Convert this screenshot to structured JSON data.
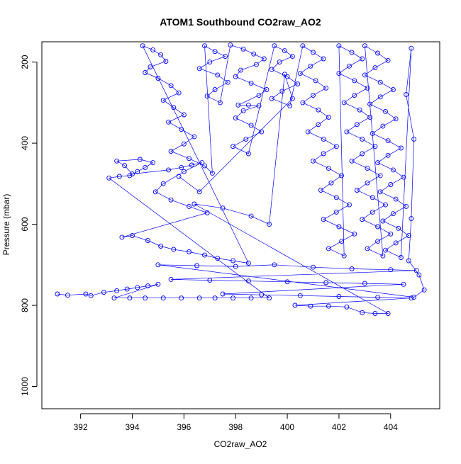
{
  "chart_data": {
    "type": "scatter",
    "title": "ATOM1 Southbound CO2raw_AO2",
    "xlabel": "CO2raw_AO2",
    "ylabel": "Pressure (mbar)",
    "xlim": [
      390.5,
      405.9
    ],
    "ylim": [
      1055,
      150
    ],
    "y_reversed": true,
    "x_ticks": [
      "392",
      "394",
      "396",
      "398",
      "400",
      "402",
      "404"
    ],
    "y_ticks": [
      "200",
      "400",
      "600",
      "800",
      "1000"
    ],
    "grid": false,
    "legend": "none",
    "point_style": "open-circle-connected",
    "series": [
      {
        "color": "#0000ff",
        "points": [
          [
            391.1,
            772
          ],
          [
            391.5,
            775
          ],
          [
            392.2,
            772
          ],
          [
            392.4,
            776
          ],
          [
            392.9,
            768
          ],
          [
            393.4,
            764
          ],
          [
            393.8,
            760
          ],
          [
            394.2,
            756
          ],
          [
            394.6,
            752
          ],
          [
            395.0,
            748
          ],
          [
            393.3,
            782
          ],
          [
            393.9,
            782
          ],
          [
            394.5,
            782
          ],
          [
            395.2,
            782
          ],
          [
            395.9,
            782
          ],
          [
            396.6,
            782
          ],
          [
            397.2,
            782
          ],
          [
            397.9,
            782
          ],
          [
            398.6,
            782
          ],
          [
            399.3,
            782
          ],
          [
            393.1,
            486
          ],
          [
            393.5,
            482
          ],
          [
            393.9,
            480
          ],
          [
            394.2,
            470
          ],
          [
            394.5,
            460
          ],
          [
            394.8,
            448
          ],
          [
            394.3,
            440
          ],
          [
            393.4,
            444
          ],
          [
            393.7,
            455
          ],
          [
            394.0,
            476
          ],
          [
            395.4,
            466
          ],
          [
            395.9,
            460
          ],
          [
            396.3,
            454
          ],
          [
            396.7,
            448
          ],
          [
            396.0,
            470
          ],
          [
            395.2,
            500
          ],
          [
            394.9,
            520
          ],
          [
            395.5,
            540
          ],
          [
            396.2,
            556
          ],
          [
            396.9,
            572
          ],
          [
            393.6,
            632
          ],
          [
            394.0,
            628
          ],
          [
            394.6,
            640
          ],
          [
            395.1,
            654
          ],
          [
            395.6,
            662
          ],
          [
            396.2,
            668
          ],
          [
            396.8,
            676
          ],
          [
            397.3,
            684
          ],
          [
            397.9,
            690
          ],
          [
            398.5,
            696
          ],
          [
            394.4,
            160
          ],
          [
            394.8,
            170
          ],
          [
            395.1,
            182
          ],
          [
            395.3,
            198
          ],
          [
            394.7,
            212
          ],
          [
            394.5,
            226
          ],
          [
            395.0,
            240
          ],
          [
            395.5,
            258
          ],
          [
            395.8,
            276
          ],
          [
            395.2,
            294
          ],
          [
            395.6,
            312
          ],
          [
            396.0,
            330
          ],
          [
            395.4,
            348
          ],
          [
            395.9,
            366
          ],
          [
            396.4,
            384
          ],
          [
            396.0,
            402
          ],
          [
            395.5,
            420
          ],
          [
            396.2,
            438
          ],
          [
            396.8,
            456
          ],
          [
            397.1,
            474
          ],
          [
            396.8,
            160
          ],
          [
            397.2,
            174
          ],
          [
            397.6,
            186
          ],
          [
            397.0,
            200
          ],
          [
            396.6,
            216
          ],
          [
            397.3,
            232
          ],
          [
            397.7,
            250
          ],
          [
            397.2,
            268
          ],
          [
            396.9,
            284
          ],
          [
            397.4,
            300
          ],
          [
            397.8,
            158
          ],
          [
            398.3,
            168
          ],
          [
            398.7,
            180
          ],
          [
            399.1,
            192
          ],
          [
            398.8,
            206
          ],
          [
            398.2,
            220
          ],
          [
            398.0,
            236
          ],
          [
            398.6,
            252
          ],
          [
            399.2,
            268
          ],
          [
            398.9,
            282
          ],
          [
            398.1,
            306
          ],
          [
            398.5,
            306
          ],
          [
            398.9,
            308
          ],
          [
            398.3,
            320
          ],
          [
            398.0,
            338
          ],
          [
            398.6,
            356
          ],
          [
            399.0,
            372
          ],
          [
            398.4,
            390
          ],
          [
            397.9,
            408
          ],
          [
            398.5,
            426
          ],
          [
            399.5,
            160
          ],
          [
            399.9,
            172
          ],
          [
            400.2,
            186
          ],
          [
            399.7,
            200
          ],
          [
            399.4,
            218
          ],
          [
            400.0,
            236
          ],
          [
            400.4,
            254
          ],
          [
            399.8,
            272
          ],
          [
            399.4,
            290
          ],
          [
            400.1,
            308
          ],
          [
            400.6,
            160
          ],
          [
            401.0,
            176
          ],
          [
            401.4,
            192
          ],
          [
            400.9,
            210
          ],
          [
            400.5,
            228
          ],
          [
            401.1,
            246
          ],
          [
            401.5,
            264
          ],
          [
            401.0,
            282
          ],
          [
            400.6,
            300
          ],
          [
            401.2,
            318
          ],
          [
            401.6,
            336
          ],
          [
            401.2,
            354
          ],
          [
            400.8,
            372
          ],
          [
            401.4,
            390
          ],
          [
            401.9,
            408
          ],
          [
            401.4,
            426
          ],
          [
            401.0,
            444
          ],
          [
            401.6,
            462
          ],
          [
            402.1,
            480
          ],
          [
            401.7,
            498
          ],
          [
            401.3,
            516
          ],
          [
            401.9,
            534
          ],
          [
            402.4,
            552
          ],
          [
            401.9,
            570
          ],
          [
            401.4,
            588
          ],
          [
            402.0,
            606
          ],
          [
            402.6,
            624
          ],
          [
            402.1,
            642
          ],
          [
            401.6,
            660
          ],
          [
            402.2,
            678
          ],
          [
            402.0,
            160
          ],
          [
            402.5,
            176
          ],
          [
            402.9,
            192
          ],
          [
            402.4,
            210
          ],
          [
            402.0,
            228
          ],
          [
            402.6,
            246
          ],
          [
            403.1,
            264
          ],
          [
            402.6,
            282
          ],
          [
            402.2,
            300
          ],
          [
            402.8,
            318
          ],
          [
            403.2,
            336
          ],
          [
            402.7,
            354
          ],
          [
            402.3,
            372
          ],
          [
            402.9,
            390
          ],
          [
            403.4,
            408
          ],
          [
            402.9,
            426
          ],
          [
            402.5,
            444
          ],
          [
            403.1,
            462
          ],
          [
            403.6,
            480
          ],
          [
            403.1,
            498
          ],
          [
            402.7,
            516
          ],
          [
            403.3,
            534
          ],
          [
            403.8,
            552
          ],
          [
            403.3,
            570
          ],
          [
            402.9,
            588
          ],
          [
            403.5,
            606
          ],
          [
            404.0,
            624
          ],
          [
            403.5,
            642
          ],
          [
            403.1,
            660
          ],
          [
            403.7,
            678
          ],
          [
            403.0,
            160
          ],
          [
            403.5,
            178
          ],
          [
            403.9,
            196
          ],
          [
            403.4,
            214
          ],
          [
            403.0,
            232
          ],
          [
            403.6,
            250
          ],
          [
            404.1,
            268
          ],
          [
            403.6,
            286
          ],
          [
            403.2,
            304
          ],
          [
            403.8,
            322
          ],
          [
            404.2,
            340
          ],
          [
            403.7,
            358
          ],
          [
            403.3,
            376
          ],
          [
            403.9,
            394
          ],
          [
            404.4,
            412
          ],
          [
            403.9,
            430
          ],
          [
            403.5,
            448
          ],
          [
            404.1,
            466
          ],
          [
            404.5,
            484
          ],
          [
            404.0,
            502
          ],
          [
            403.6,
            520
          ],
          [
            404.2,
            538
          ],
          [
            404.6,
            556
          ],
          [
            404.1,
            574
          ],
          [
            403.7,
            592
          ],
          [
            404.3,
            610
          ],
          [
            404.7,
            628
          ],
          [
            404.2,
            646
          ],
          [
            403.8,
            664
          ],
          [
            404.4,
            682
          ],
          [
            404.8,
            166
          ],
          [
            404.6,
            280
          ],
          [
            404.9,
            390
          ],
          [
            404.8,
            586
          ],
          [
            404.7,
            690
          ],
          [
            405.1,
            725
          ],
          [
            405.3,
            762
          ],
          [
            404.9,
            780
          ],
          [
            395.0,
            700
          ],
          [
            396.5,
            702
          ],
          [
            398.0,
            704
          ],
          [
            399.5,
            700
          ],
          [
            401.0,
            706
          ],
          [
            402.5,
            710
          ],
          [
            404.0,
            712
          ],
          [
            405.0,
            714
          ],
          [
            395.5,
            736
          ],
          [
            397.0,
            738
          ],
          [
            398.5,
            740
          ],
          [
            400.0,
            742
          ],
          [
            401.5,
            744
          ],
          [
            403.0,
            746
          ],
          [
            404.5,
            748
          ],
          [
            397.5,
            772
          ],
          [
            399.0,
            774
          ],
          [
            400.5,
            776
          ],
          [
            402.0,
            778
          ],
          [
            403.5,
            780
          ],
          [
            404.8,
            782
          ],
          [
            400.3,
            800
          ],
          [
            400.9,
            802
          ],
          [
            401.6,
            802
          ],
          [
            402.3,
            804
          ],
          [
            402.9,
            818
          ],
          [
            403.4,
            820
          ],
          [
            403.9,
            820
          ],
          [
            396.4,
            550
          ],
          [
            397.5,
            560
          ],
          [
            398.6,
            580
          ],
          [
            399.3,
            600
          ],
          [
            399.9,
            230
          ],
          [
            400.2,
            290
          ],
          [
            396.6,
            520
          ],
          [
            395.8,
            482
          ]
        ]
      }
    ]
  }
}
